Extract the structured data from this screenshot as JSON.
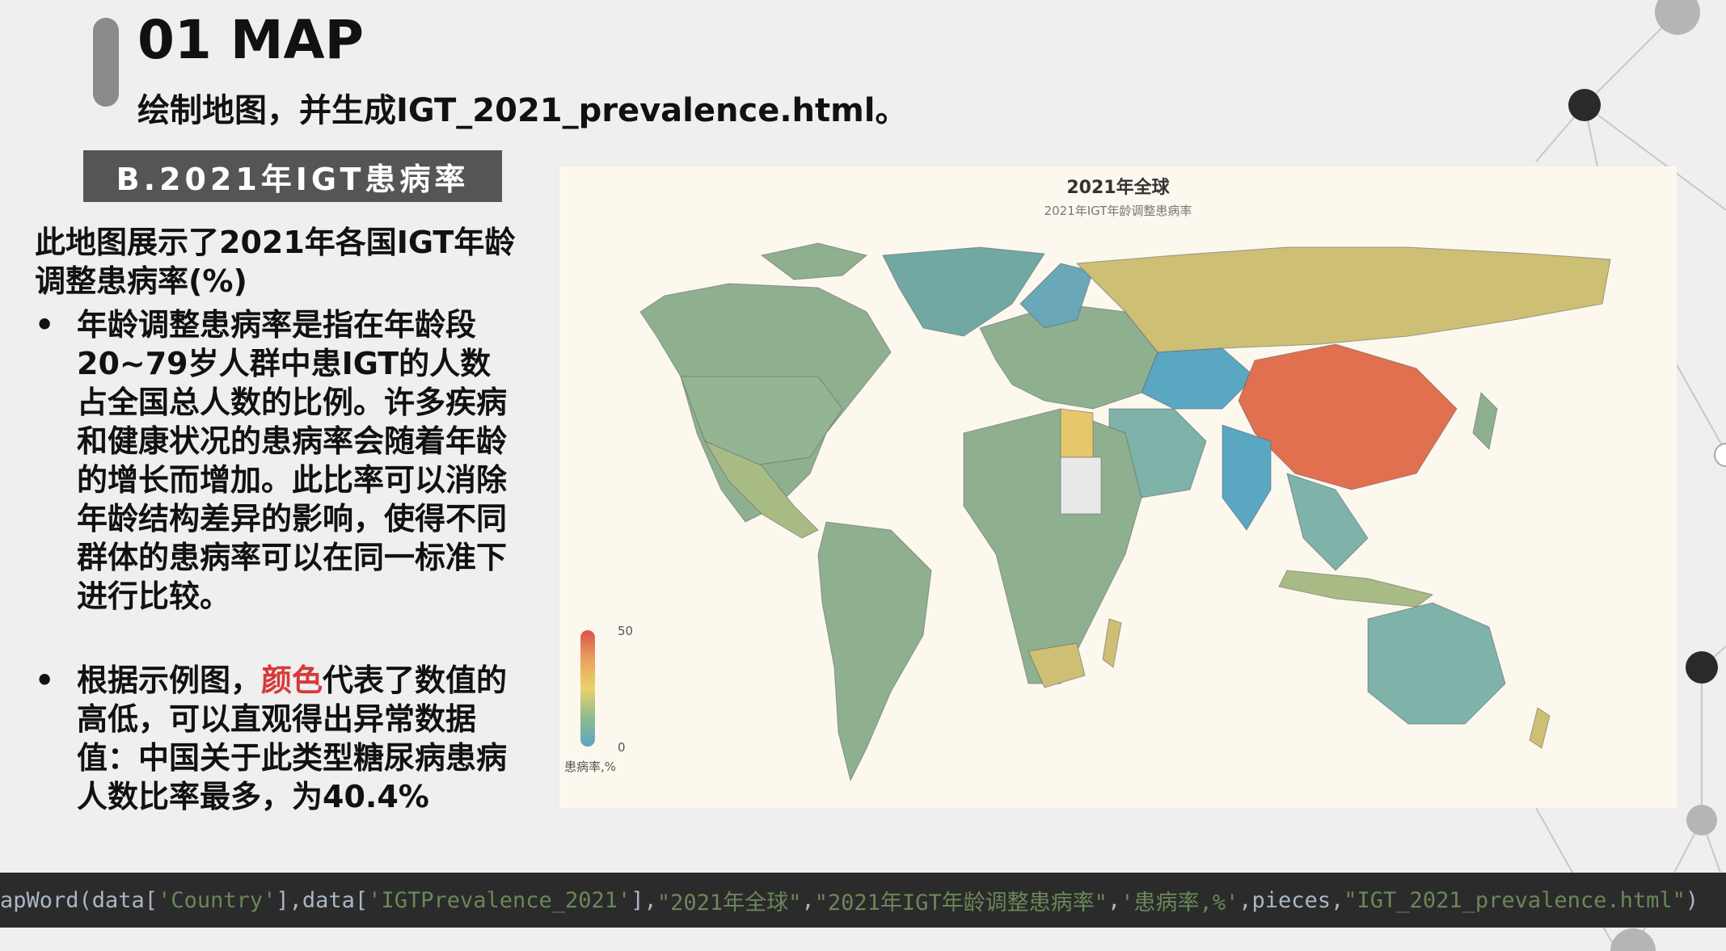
{
  "header": {
    "title": "01 MAP",
    "subtitle": "绘制地图，并生成IGT_2021_prevalence.html。"
  },
  "section": {
    "label": "B.2021年IGT患病率"
  },
  "content": {
    "intro": "此地图展示了2021年各国IGT年龄调整患病率(%)",
    "bullet_mark": "•",
    "bullet1": "年龄调整患病率是指在年龄段20~79岁人群中患IGT的人数占全国总人数的比例。许多疾病和健康状况的患病率会随着年龄的增长而增加。此比率可以消除年龄结构差异的影响，使得不同群体的患病率可以在同一标准下进行比较。",
    "bullet2_pre": "根据示例图，",
    "bullet2_highlight": "颜色",
    "bullet2_post": "代表了数值的高低，可以直观得出异常数据值：中国关于此类型糖尿病患病人数比率最多，为40.4%"
  },
  "map": {
    "title": "2021年全球",
    "subtitle": "2021年IGT年龄调整患病率",
    "legend": {
      "max": "50",
      "min": "0",
      "unit": "患病率,%"
    }
  },
  "code": {
    "prefix": "apWord(data[",
    "arg1": "'Country'",
    "mid1": "],data[",
    "arg2": "'IGTPrevalence_2021'",
    "mid2": "],",
    "arg3": "\"2021年全球\"",
    "sep3": ",",
    "arg4": "\"2021年IGT年龄调整患病率\"",
    "sep4": ",",
    "arg5": "'患病率,%'",
    "mid5": ",pieces,",
    "arg6": "\"IGT_2021_prevalence.html\"",
    "suffix": ")"
  },
  "colors": {
    "high": "#e07050",
    "mid": "#cfc070",
    "low": "#5aa7c2",
    "neutral": "#8fb08f"
  }
}
